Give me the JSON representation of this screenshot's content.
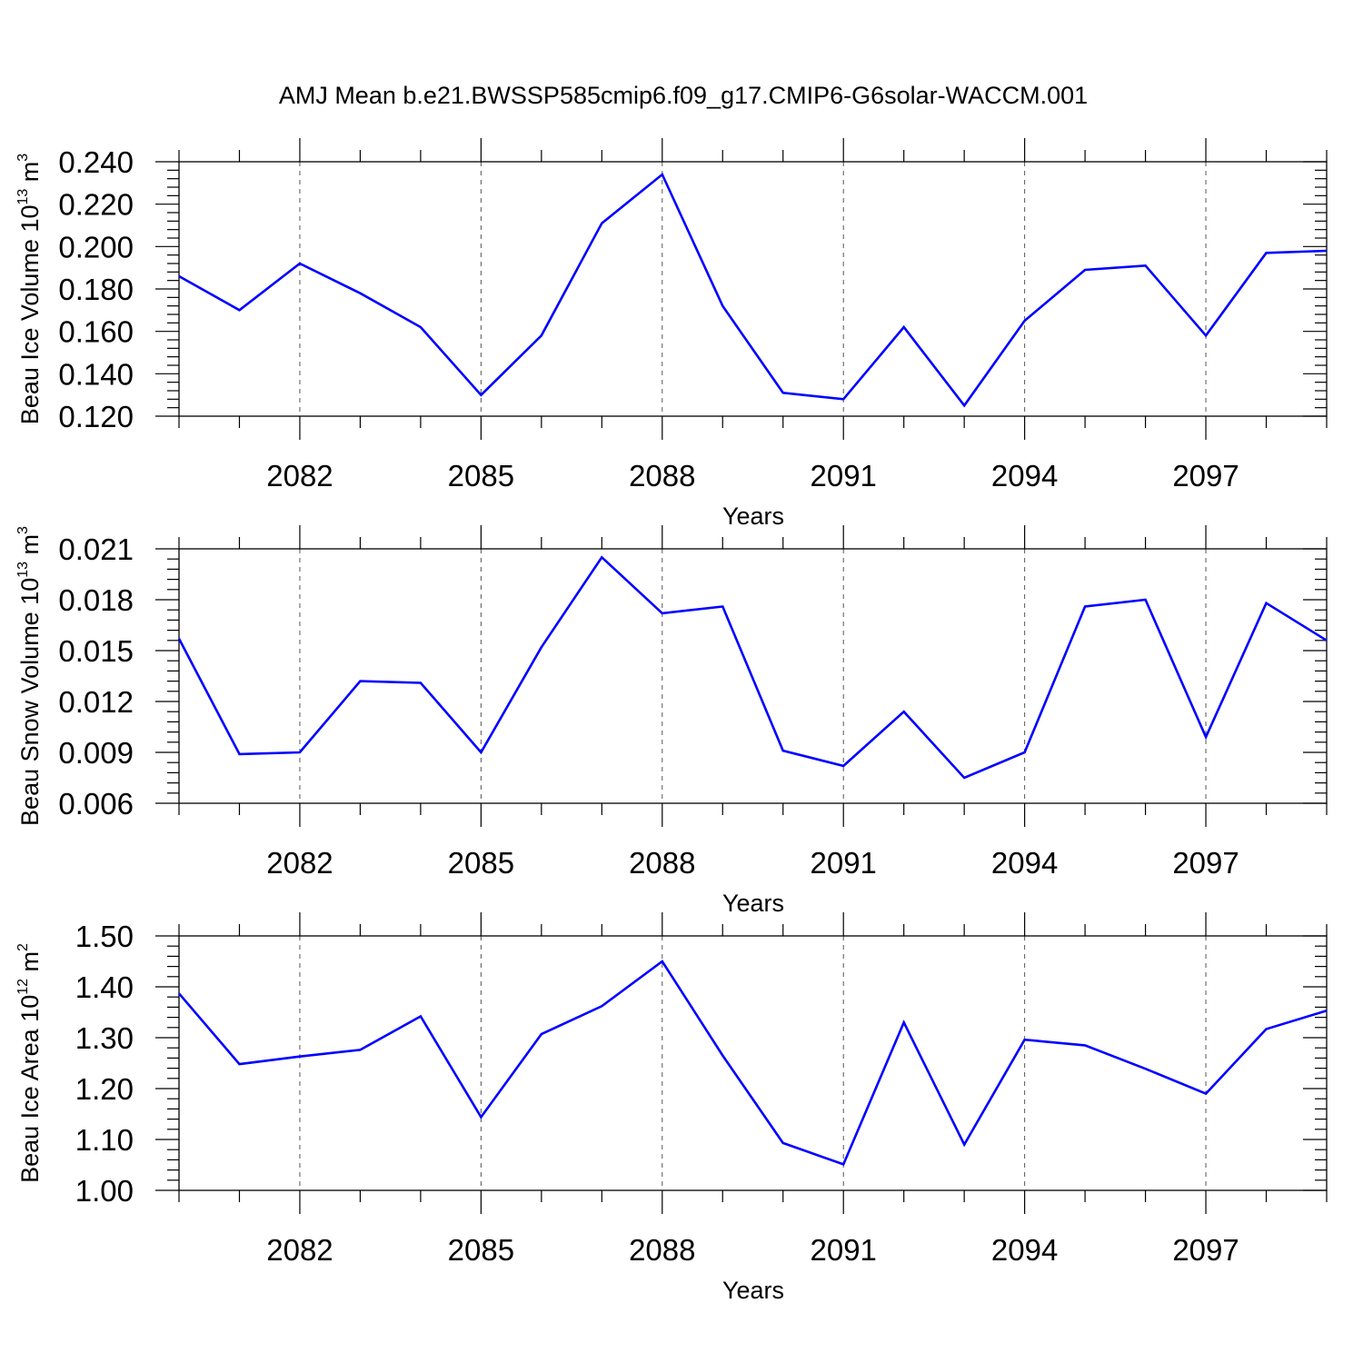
{
  "chart_data": {
    "title": "AMJ Mean b.e21.BWSSP585cmip6.f09_g17.CMIP6-G6solar-WACCM.001",
    "x": [
      2080,
      2081,
      2082,
      2083,
      2084,
      2085,
      2086,
      2087,
      2088,
      2089,
      2090,
      2091,
      2092,
      2093,
      2094,
      2095,
      2096,
      2097,
      2098,
      2099
    ],
    "xlim": [
      2080,
      2099
    ],
    "xticks": [
      2082,
      2085,
      2088,
      2091,
      2094,
      2097
    ],
    "xtick_labels": [
      "2082",
      "2085",
      "2088",
      "2091",
      "2094",
      "2097"
    ],
    "grid": "vertical dashed at major x ticks",
    "color": "#0000ff",
    "panels": [
      {
        "type": "line",
        "ylabel_main": "Beau Ice Volume 10",
        "ylabel_exp": "13",
        "ylabel_unit": " m",
        "ylabel_unit_exp": "3",
        "xlabel": "Years",
        "ylim": [
          0.12,
          0.24
        ],
        "yticks": [
          "0.120",
          "0.140",
          "0.160",
          "0.180",
          "0.200",
          "0.220",
          "0.240"
        ],
        "values": [
          0.186,
          0.17,
          0.192,
          0.178,
          0.162,
          0.13,
          0.158,
          0.211,
          0.234,
          0.172,
          0.131,
          0.128,
          0.162,
          0.125,
          0.165,
          0.189,
          0.191,
          0.158,
          0.197,
          0.198
        ]
      },
      {
        "type": "line",
        "ylabel_main": "Beau Snow Volume 10",
        "ylabel_exp": "13",
        "ylabel_unit": " m",
        "ylabel_unit_exp": "3",
        "xlabel": "Years",
        "ylim": [
          0.006,
          0.021
        ],
        "yticks": [
          "0.006",
          "0.009",
          "0.012",
          "0.015",
          "0.018",
          "0.021"
        ],
        "values": [
          0.0157,
          0.0089,
          0.009,
          0.0132,
          0.0131,
          0.009,
          0.0152,
          0.0205,
          0.0172,
          0.0176,
          0.0091,
          0.0082,
          0.0114,
          0.0075,
          0.009,
          0.0176,
          0.018,
          0.0099,
          0.0178,
          0.0156
        ]
      },
      {
        "type": "line",
        "ylabel_main": "Beau Ice Area 10",
        "ylabel_exp": "12",
        "ylabel_unit": " m",
        "ylabel_unit_exp": "2",
        "xlabel": "Years",
        "ylim": [
          1.0,
          1.5
        ],
        "yticks": [
          "1.00",
          "1.10",
          "1.20",
          "1.30",
          "1.40",
          "1.50"
        ],
        "values": [
          1.387,
          1.248,
          1.263,
          1.276,
          1.342,
          1.144,
          1.307,
          1.362,
          1.45,
          1.265,
          1.093,
          1.051,
          1.33,
          1.09,
          1.296,
          1.285,
          1.239,
          1.19,
          1.317,
          1.353
        ]
      }
    ]
  }
}
